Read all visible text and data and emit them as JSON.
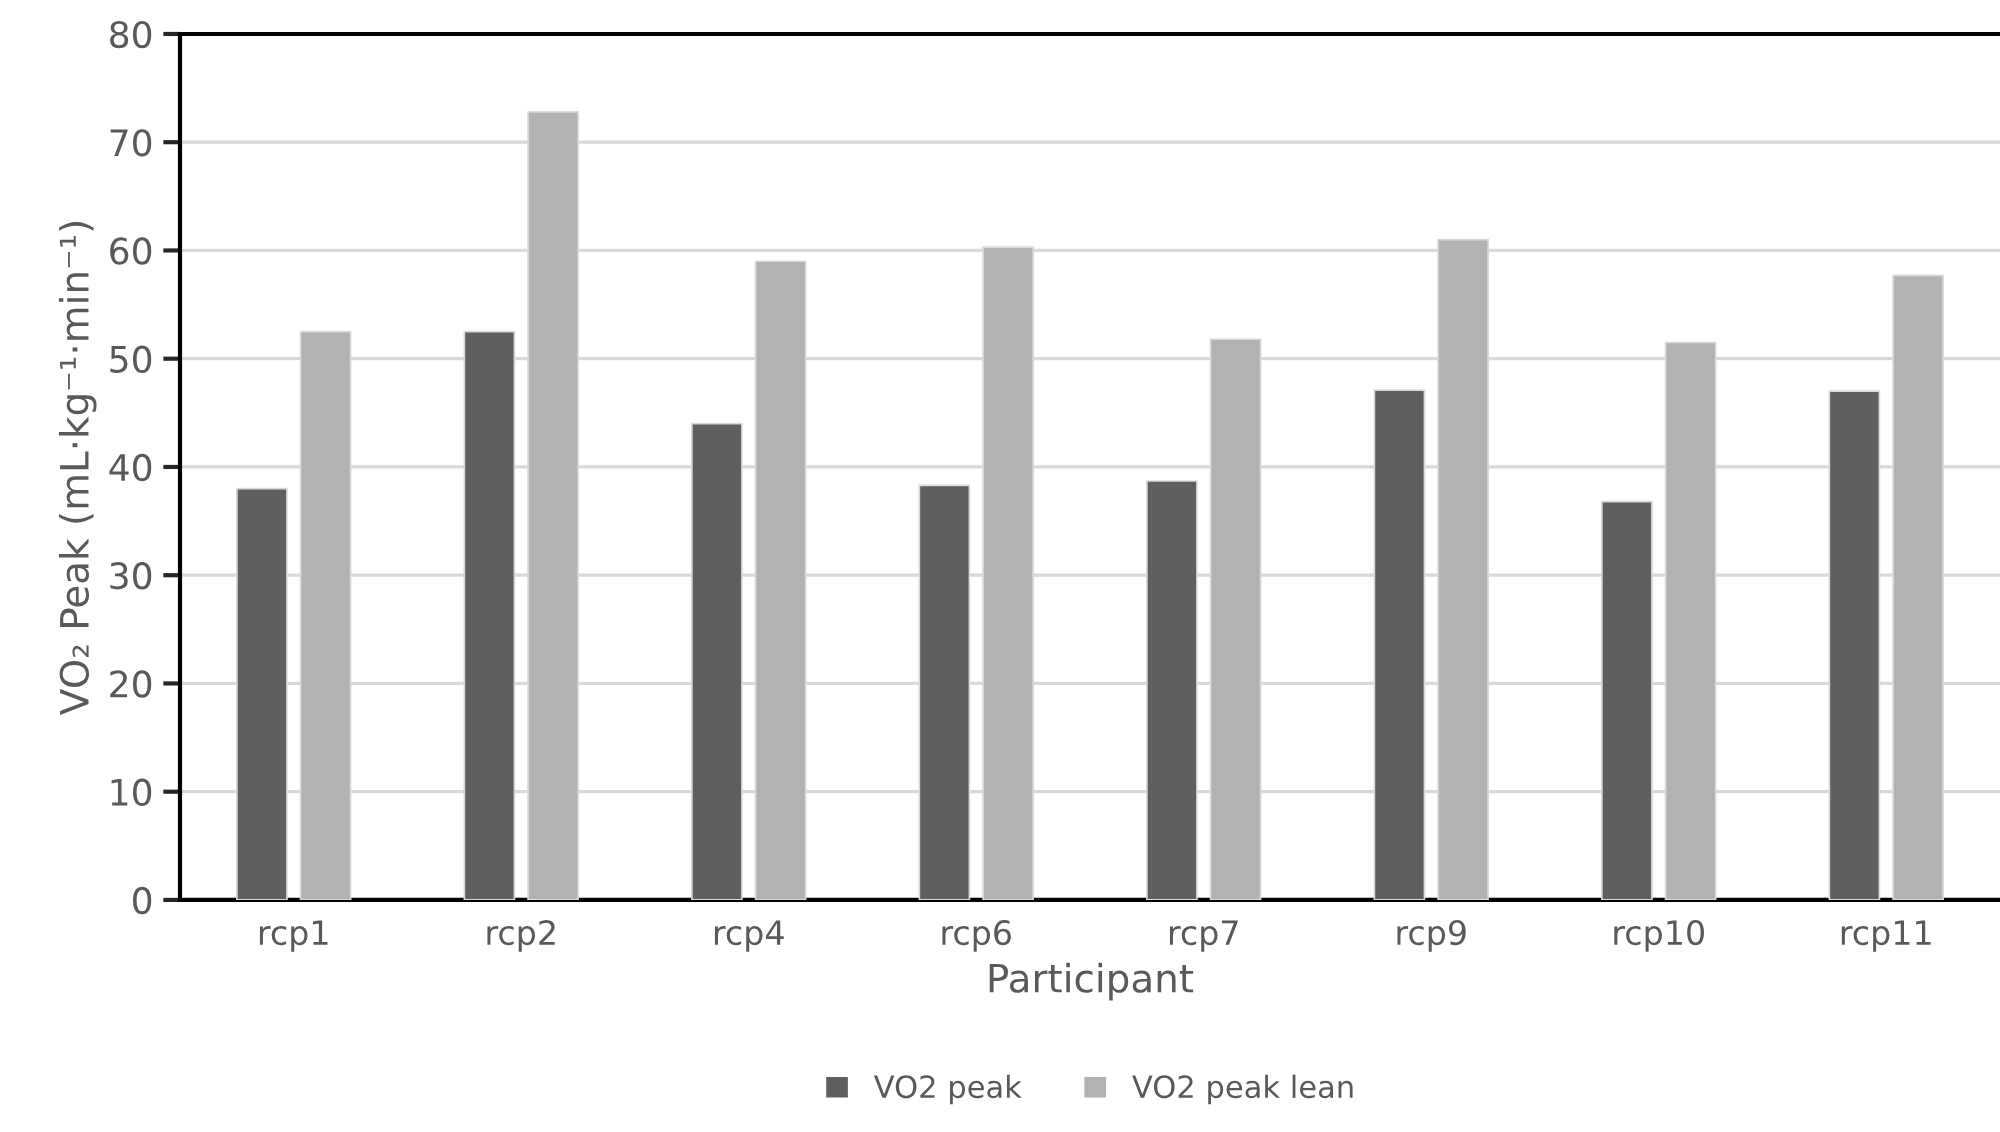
{
  "chart_data": {
    "type": "bar",
    "xlabel": "Participant",
    "ylabel": "VO₂ Peak (mL·kg⁻¹·min⁻¹)",
    "categories": [
      "rcp1",
      "rcp2",
      "rcp4",
      "rcp6",
      "rcp7",
      "rcp9",
      "rcp10",
      "rcp11"
    ],
    "series": [
      {
        "name": "VO2 peak",
        "color": "#5f5f5f",
        "values": [
          38,
          52.5,
          44,
          38.3,
          38.7,
          47.1,
          36.8,
          47
        ]
      },
      {
        "name": "VO2 peak lean",
        "color": "#b2b2b2",
        "values": [
          52.5,
          72.8,
          59,
          60.3,
          51.8,
          61,
          51.5,
          57.7
        ]
      }
    ],
    "ylim": [
      0,
      80
    ],
    "yticks": [
      0,
      10,
      20,
      30,
      40,
      50,
      60,
      70,
      80
    ],
    "grid": "y",
    "legend": "bottom"
  }
}
